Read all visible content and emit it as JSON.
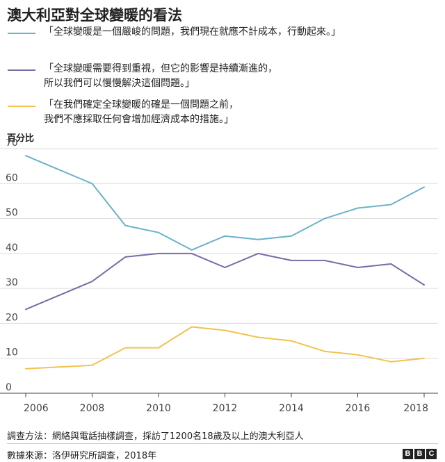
{
  "title": "澳大利亞對全球變暖的看法",
  "legend": [
    {
      "lines": [
        "「全球變暖是一個嚴峻的問題，我們現在就應不計成本，行動起來。」"
      ],
      "color": "#6ab2c8"
    },
    {
      "lines": [
        "「全球變暖需要得到重視，但它的影響是持續漸進的，",
        "所以我們可以慢慢解決這個問題。」"
      ],
      "color": "#7b6aa6"
    },
    {
      "lines": [
        "「在我們確定全球變暖的確是一個問題之前，",
        "我們不應採取任何會增加經濟成本的措施。」"
      ],
      "color": "#f2c24f"
    }
  ],
  "chart_data": {
    "type": "line",
    "title": "澳大利亞對全球變暖的看法",
    "ylabel": "百分比",
    "xlabel": "",
    "ylim": [
      0,
      70
    ],
    "xlim": [
      2006,
      2018
    ],
    "yticks": [
      0,
      10,
      20,
      30,
      40,
      50,
      60,
      70
    ],
    "xticks": [
      2006,
      2008,
      2010,
      2012,
      2014,
      2016,
      2018
    ],
    "x": [
      2006,
      2008,
      2009,
      2010,
      2011,
      2012,
      2013,
      2014,
      2015,
      2016,
      2017,
      2018
    ],
    "series": [
      {
        "name": "「全球變暖是一個嚴峻的問題，我們現在就應不計成本，行動起來。」",
        "color": "#6ab2c8",
        "values": [
          68,
          60,
          48,
          46,
          41,
          45,
          44,
          45,
          50,
          53,
          54,
          59
        ]
      },
      {
        "name": "「全球變暖需要得到重視，但它的影響是持續漸進的，所以我們可以慢慢解決這個問題。」",
        "color": "#7b6aa6",
        "values": [
          24,
          32,
          39,
          40,
          40,
          36,
          40,
          38,
          38,
          36,
          37,
          31
        ]
      },
      {
        "name": "「在我們確定全球變暖的確是一個問題之前，我們不應採取任何會增加經濟成本的措施。」",
        "color": "#f2c24f",
        "values": [
          7,
          8,
          13,
          13,
          19,
          18,
          16,
          15,
          12,
          11,
          9,
          10
        ]
      }
    ],
    "grid": true,
    "legend_position": "top"
  },
  "footnotes": {
    "method": "調查方法：網絡與電話抽樣調查，採訪了1200名18歲及以上的澳大利亞人",
    "source": "數據來源：洛伊研究所調查，2018年"
  },
  "brand": [
    "B",
    "B",
    "C"
  ]
}
